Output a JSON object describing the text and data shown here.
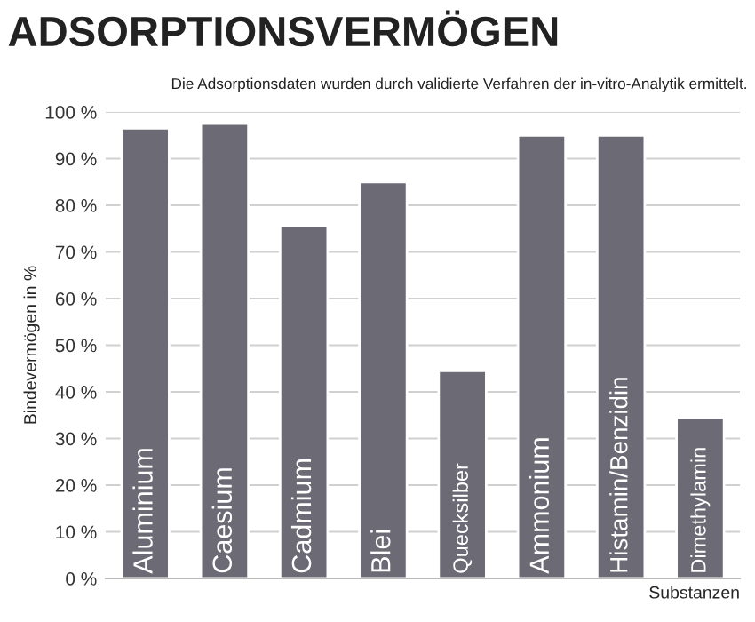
{
  "chart_data": {
    "type": "bar",
    "title": "ADSORPTIONSVERMÖGEN",
    "subtitle": "Die Adsorptionsdaten wurden durch validierte Verfahren der in-vitro-Analytik ermittelt.",
    "xlabel": "Substanzen",
    "ylabel": "Bindevermögen in %",
    "categories": [
      "Aluminium",
      "Caesium",
      "Cadmium",
      "Blei",
      "Quecksilber",
      "Ammonium",
      "Histamin/Benzidin",
      "Dimethylamin"
    ],
    "values": [
      96.5,
      97.5,
      75.5,
      85,
      44.5,
      95,
      95,
      34.5
    ],
    "color": "#6b6a75",
    "ylim": [
      0,
      100
    ],
    "yticks": [
      {
        "value": 0,
        "label": "0 %"
      },
      {
        "value": 10,
        "label": "10 %"
      },
      {
        "value": 20,
        "label": "20 %"
      },
      {
        "value": 30,
        "label": "30 %"
      },
      {
        "value": 40,
        "label": "40 %"
      },
      {
        "value": 50,
        "label": "50 %"
      },
      {
        "value": 60,
        "label": "60 %"
      },
      {
        "value": 70,
        "label": "70 %"
      },
      {
        "value": 80,
        "label": "80 %"
      },
      {
        "value": 90,
        "label": "90 %"
      },
      {
        "value": 100,
        "label": "100 %"
      }
    ],
    "grid": "y"
  }
}
